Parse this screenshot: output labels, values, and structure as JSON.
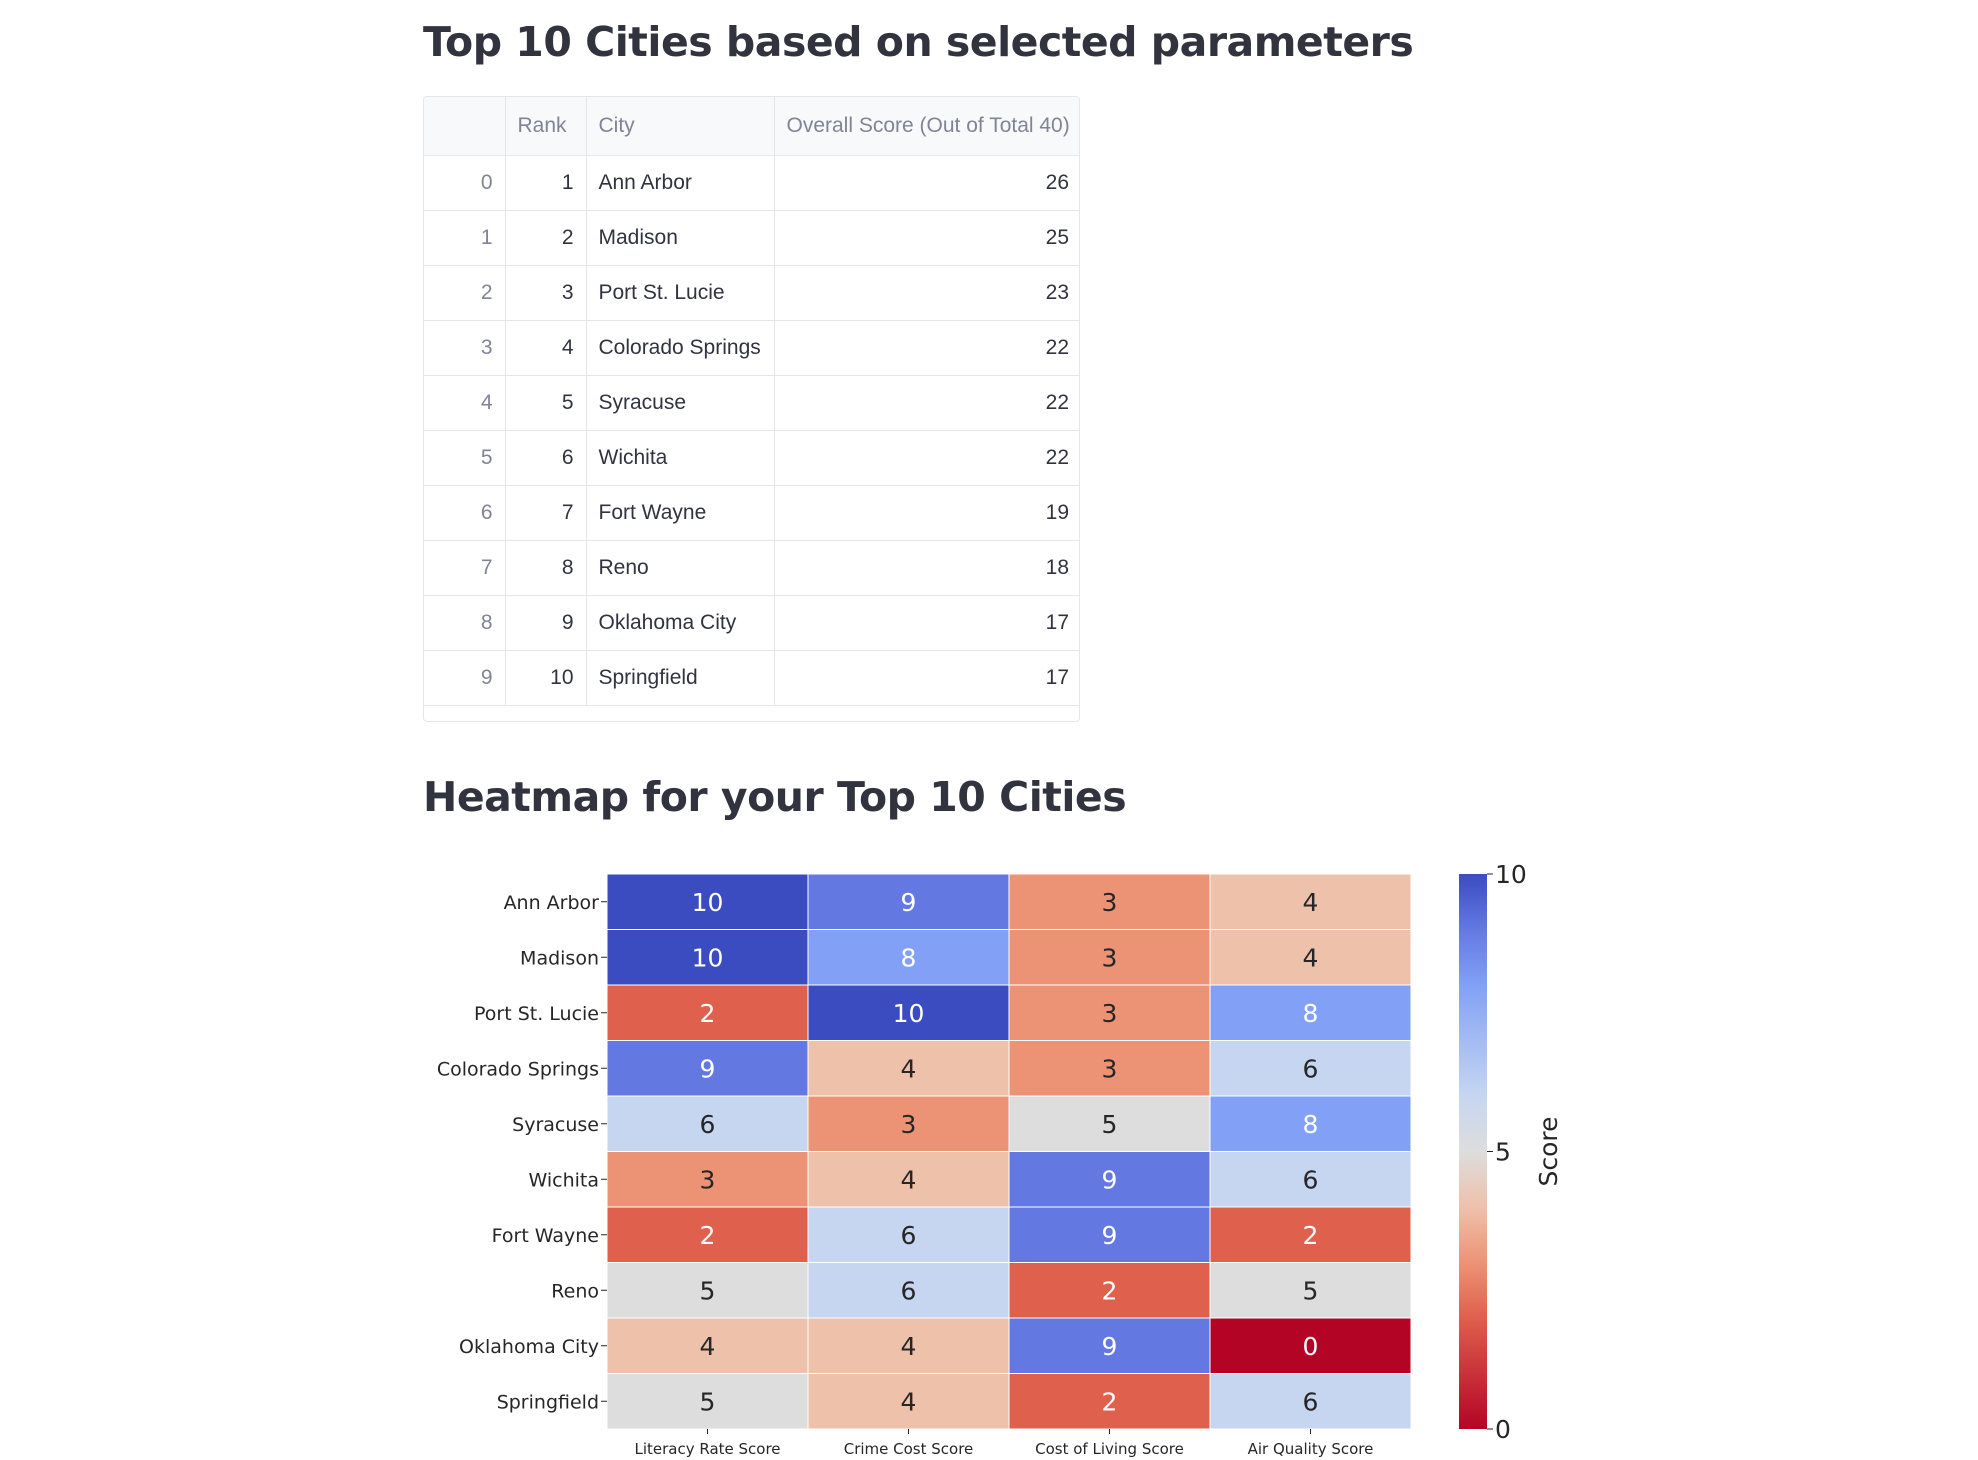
{
  "titles": {
    "table_title": "Top 10 Cities based on selected parameters",
    "heatmap_title": "Heatmap for your Top 10 Cities"
  },
  "table": {
    "columns": [
      "",
      "Rank",
      "City",
      "Overall Score (Out of Total 40)"
    ],
    "rows": [
      {
        "index": "0",
        "rank": "1",
        "city": "Ann Arbor",
        "score": "26"
      },
      {
        "index": "1",
        "rank": "2",
        "city": "Madison",
        "score": "25"
      },
      {
        "index": "2",
        "rank": "3",
        "city": "Port St. Lucie",
        "score": "23"
      },
      {
        "index": "3",
        "rank": "4",
        "city": "Colorado Springs",
        "score": "22"
      },
      {
        "index": "4",
        "rank": "5",
        "city": "Syracuse",
        "score": "22"
      },
      {
        "index": "5",
        "rank": "6",
        "city": "Wichita",
        "score": "22"
      },
      {
        "index": "6",
        "rank": "7",
        "city": "Fort Wayne",
        "score": "19"
      },
      {
        "index": "7",
        "rank": "8",
        "city": "Reno",
        "score": "18"
      },
      {
        "index": "8",
        "rank": "9",
        "city": "Oklahoma City",
        "score": "17"
      },
      {
        "index": "9",
        "rank": "10",
        "city": "Springfield",
        "score": "17"
      }
    ]
  },
  "chart_data": {
    "type": "heatmap",
    "y_categories": [
      "Ann Arbor",
      "Madison",
      "Port St. Lucie",
      "Colorado Springs",
      "Syracuse",
      "Wichita",
      "Fort Wayne",
      "Reno",
      "Oklahoma City",
      "Springfield"
    ],
    "x_categories": [
      "Literacy Rate Score",
      "Crime Cost Score",
      "Cost of Living Score",
      "Air Quality Score"
    ],
    "values": [
      [
        10,
        9,
        3,
        4
      ],
      [
        10,
        8,
        3,
        4
      ],
      [
        2,
        10,
        3,
        8
      ],
      [
        9,
        4,
        3,
        6
      ],
      [
        6,
        3,
        5,
        8
      ],
      [
        3,
        4,
        9,
        6
      ],
      [
        2,
        6,
        9,
        2
      ],
      [
        5,
        6,
        2,
        5
      ],
      [
        4,
        4,
        9,
        0
      ],
      [
        5,
        4,
        2,
        6
      ]
    ],
    "colorbar": {
      "label": "Score",
      "min": 0,
      "max": 10,
      "ticks": [
        "0",
        "5",
        "10"
      ]
    },
    "colormap": "coolwarm_r",
    "colors": {
      "low": "#b40426",
      "mid": "#dddddd",
      "high": "#3b4cc0"
    },
    "annotations": true
  }
}
